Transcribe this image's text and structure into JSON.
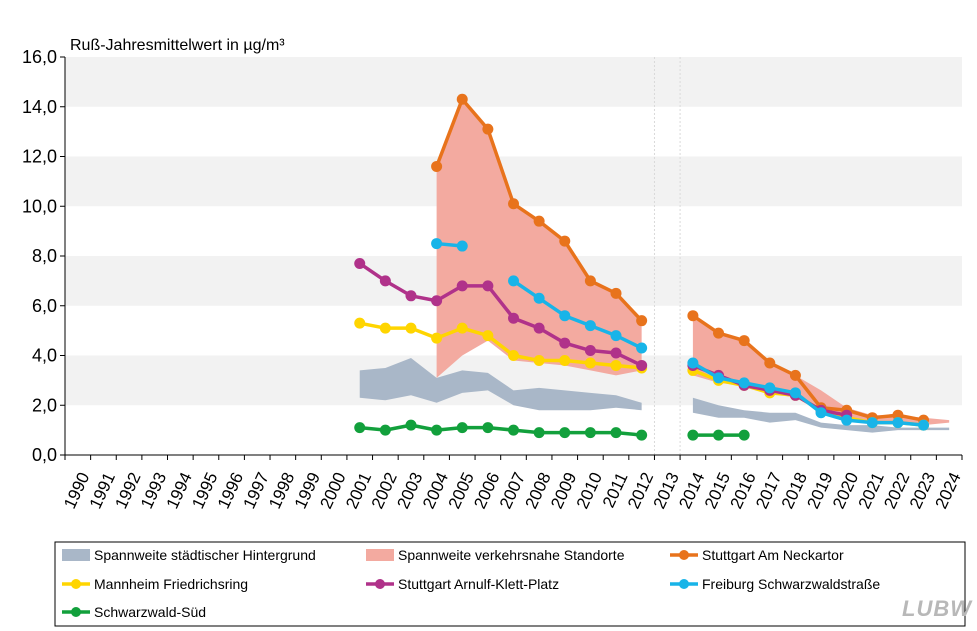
{
  "chart_data": {
    "type": "line",
    "title": "Ruß-Jahresmittelwert  in µg/m³",
    "xlabel": "",
    "ylabel": "",
    "ylim": [
      0,
      16
    ],
    "y_ticks": [
      "0,0",
      "2,0",
      "4,0",
      "6,0",
      "8,0",
      "10,0",
      "12,0",
      "14,0",
      "16,0"
    ],
    "categories": [
      "1990",
      "1991",
      "1992",
      "1993",
      "1994",
      "1995",
      "1996",
      "1997",
      "1998",
      "1999",
      "2000",
      "2001",
      "2002",
      "2003",
      "2004",
      "2005",
      "2006",
      "2007",
      "2008",
      "2009",
      "2010",
      "2011",
      "2012",
      "2013",
      "2014",
      "2015",
      "2016",
      "2017",
      "2018",
      "2019",
      "2020",
      "2021",
      "2022",
      "2023",
      "2024"
    ],
    "ranges": [
      {
        "name": "Spannweite städtischer Hintergrund",
        "color": "#a9b7c8",
        "segments": [
          {
            "x": [
              2001,
              2002,
              2003,
              2004,
              2005,
              2006,
              2007,
              2008,
              2009,
              2010,
              2011,
              2012
            ],
            "low": [
              2.3,
              2.2,
              2.4,
              2.1,
              2.5,
              2.6,
              2.0,
              1.8,
              1.8,
              1.8,
              1.9,
              1.8
            ],
            "high": [
              3.4,
              3.5,
              3.9,
              3.1,
              3.4,
              3.3,
              2.6,
              2.7,
              2.6,
              2.5,
              2.4,
              2.1
            ]
          },
          {
            "x": [
              2014,
              2015,
              2016,
              2017,
              2018,
              2019,
              2020,
              2021,
              2022,
              2023,
              2024
            ],
            "low": [
              1.7,
              1.5,
              1.5,
              1.3,
              1.4,
              1.1,
              1.0,
              0.9,
              1.0,
              1.0,
              1.0
            ],
            "high": [
              2.3,
              2.0,
              1.8,
              1.7,
              1.7,
              1.3,
              1.2,
              1.2,
              1.1,
              1.1,
              1.1
            ]
          }
        ]
      },
      {
        "name": "Spannweite verkehrsnahe Standorte",
        "color": "#f3aaa0",
        "segments": [
          {
            "x": [
              2004,
              2005,
              2006,
              2007,
              2008,
              2009,
              2010,
              2011,
              2012
            ],
            "low": [
              3.1,
              4.0,
              4.6,
              3.8,
              3.7,
              3.6,
              3.4,
              3.2,
              3.4
            ],
            "high": [
              11.6,
              14.3,
              13.1,
              10.1,
              9.4,
              8.6,
              7.0,
              6.5,
              5.4
            ]
          },
          {
            "x": [
              2014,
              2015,
              2016,
              2017,
              2018,
              2019,
              2020,
              2021,
              2022,
              2023,
              2024
            ],
            "low": [
              3.2,
              2.9,
              2.8,
              2.5,
              2.3,
              1.8,
              1.5,
              1.3,
              1.3,
              1.2,
              1.3
            ],
            "high": [
              5.6,
              4.9,
              4.6,
              3.7,
              3.2,
              2.6,
              1.9,
              1.6,
              1.6,
              1.5,
              1.4
            ]
          }
        ]
      }
    ],
    "series": [
      {
        "name": "Stuttgart Am Neckartor",
        "color": "#e8731c",
        "x": [
          2004,
          2005,
          2006,
          2007,
          2008,
          2009,
          2010,
          2011,
          2012,
          null,
          2014,
          2015,
          2016,
          2017,
          2018,
          2019,
          2020,
          2021,
          2022,
          2023
        ],
        "values": [
          11.6,
          14.3,
          13.1,
          10.1,
          9.4,
          8.6,
          7.0,
          6.5,
          5.4,
          null,
          5.6,
          4.9,
          4.6,
          3.7,
          3.2,
          1.9,
          1.8,
          1.5,
          1.6,
          1.4
        ]
      },
      {
        "name": "Mannheim Friedrichsring",
        "color": "#ffd500",
        "x": [
          2001,
          2002,
          2003,
          2004,
          2005,
          2006,
          2007,
          2008,
          2009,
          2010,
          2011,
          2012,
          null,
          2014,
          2015,
          2016,
          2017,
          2018,
          2019,
          2020,
          2021,
          2022,
          2023
        ],
        "values": [
          5.3,
          5.1,
          5.1,
          4.7,
          5.1,
          4.8,
          4.0,
          3.8,
          3.8,
          3.7,
          3.6,
          3.5,
          null,
          3.4,
          3.0,
          2.8,
          2.5,
          2.4,
          1.8,
          1.5,
          1.3,
          1.3,
          1.2
        ]
      },
      {
        "name": "Stuttgart Arnulf-Klett-Platz",
        "color": "#b0328a",
        "x": [
          2001,
          2002,
          2003,
          2004,
          2005,
          2006,
          2007,
          2008,
          2009,
          2010,
          2011,
          2012,
          null,
          2014,
          2015,
          2016,
          2017,
          2018,
          2019,
          2020
        ],
        "values": [
          7.7,
          7.0,
          6.4,
          6.2,
          6.8,
          6.8,
          5.5,
          5.1,
          4.5,
          4.2,
          4.1,
          3.6,
          null,
          3.6,
          3.2,
          2.8,
          2.6,
          2.4,
          1.8,
          1.6
        ]
      },
      {
        "name": "Freiburg Schwarzwaldstraße",
        "color": "#18b4e8",
        "x": [
          2004,
          2005,
          null,
          2007,
          2008,
          2009,
          2010,
          2011,
          2012,
          null,
          2014,
          2015,
          2016,
          2017,
          2018,
          2019,
          2020,
          2021,
          2022,
          2023
        ],
        "values": [
          8.5,
          8.4,
          null,
          7.0,
          6.3,
          5.6,
          5.2,
          4.8,
          4.3,
          null,
          3.7,
          3.1,
          2.9,
          2.7,
          2.5,
          1.7,
          1.4,
          1.3,
          1.3,
          1.2
        ]
      },
      {
        "name": "Schwarzwald-Süd",
        "color": "#12a03c",
        "x": [
          2001,
          2002,
          2003,
          2004,
          2005,
          2006,
          2007,
          2008,
          2009,
          2010,
          2011,
          2012,
          null,
          2014,
          2015,
          2016
        ],
        "values": [
          1.1,
          1.0,
          1.2,
          1.0,
          1.1,
          1.1,
          1.0,
          0.9,
          0.9,
          0.9,
          0.9,
          0.8,
          null,
          0.8,
          0.8,
          0.8
        ]
      }
    ],
    "legend": [
      "Spannweite städtischer Hintergrund",
      "Spannweite verkehrsnahe Standorte",
      "Stuttgart Am Neckartor",
      "Mannheim Friedrichsring",
      "Stuttgart Arnulf-Klett-Platz",
      "Freiburg Schwarzwaldstraße",
      "Schwarzwald-Süd"
    ],
    "legend_position": "bottom"
  },
  "logo_text": "LUBW",
  "colors": {
    "grid_band": "#f2f2f2",
    "divider": "#d9d9d9"
  }
}
